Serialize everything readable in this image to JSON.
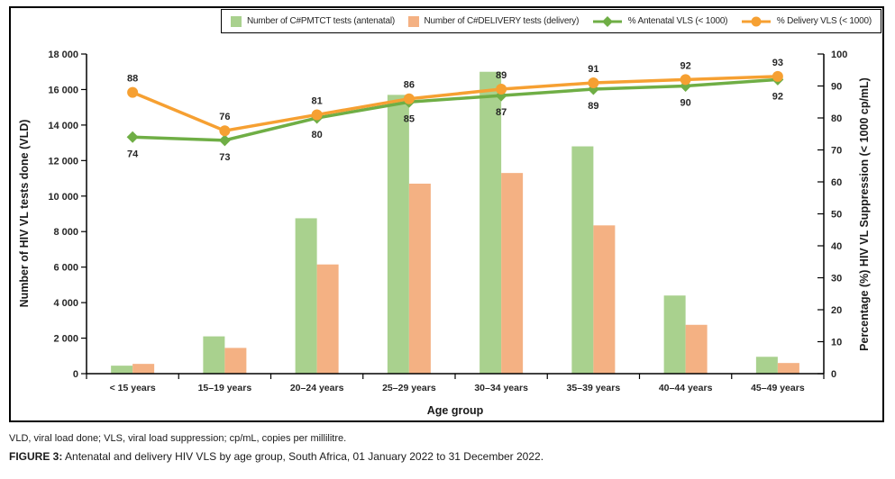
{
  "legend": {
    "items": [
      {
        "label": "Number of C#PMTCT tests (antenatal)",
        "swatch": "green-square"
      },
      {
        "label": "Number of C#DELIVERY tests (delivery)",
        "swatch": "orange-square"
      },
      {
        "label": "% Antenatal VLS (< 1000)",
        "swatch": "green-line-diamond"
      },
      {
        "label": "% Delivery VLS (< 1000)",
        "swatch": "orange-line-circle"
      }
    ]
  },
  "axes": {
    "left_title": "Number of HIV VL tests done (VLD)",
    "right_title": "Percentage (%) HIV VL Suppression (< 1000 cp/mL)",
    "x_title": "Age group"
  },
  "captions": {
    "note": "VLD, viral load done; VLS, viral load suppression; cp/mL, copies per millilitre.",
    "figure_label": "FIGURE 3:",
    "figure_text": " Antenatal and delivery HIV VLS by age group, South Africa, 01 January 2022 to 31 December 2022."
  },
  "chart_data": {
    "type": "combo-bar-line",
    "categories": [
      "< 15 years",
      "15–19 years",
      "20–24 years",
      "25–29 years",
      "30–34 years",
      "35–39 years",
      "40–44 years",
      "45–49 years"
    ],
    "bar_series": [
      {
        "name": "Number of C#PMTCT tests (antenatal)",
        "color": "#a9d18e",
        "values": [
          450,
          2100,
          8750,
          15700,
          17000,
          12800,
          4400,
          950
        ]
      },
      {
        "name": "Number of C#DELIVERY tests (delivery)",
        "color": "#f4b183",
        "values": [
          550,
          1450,
          6150,
          10700,
          11300,
          8350,
          2750,
          600
        ]
      }
    ],
    "line_series": [
      {
        "name": "% Antenatal VLS (< 1000)",
        "color": "#6fae45",
        "marker": "diamond",
        "label_position": "below",
        "values": [
          74,
          73,
          80,
          85,
          87,
          89,
          90,
          92
        ]
      },
      {
        "name": "% Delivery VLS (< 1000)",
        "color": "#f6a032",
        "marker": "circle",
        "label_position": "above",
        "values": [
          88,
          76,
          81,
          86,
          89,
          91,
          92,
          93
        ]
      }
    ],
    "left_axis": {
      "title": "Number of HIV VL tests done (VLD)",
      "range": [
        0,
        18000
      ],
      "tick_step": 2000,
      "tick_labels": [
        "0",
        "2 000",
        "4 000",
        "6 000",
        "8 000",
        "10 000",
        "12 000",
        "14 000",
        "16 000",
        "18 000"
      ]
    },
    "right_axis": {
      "title": "Percentage (%) HIV VL Suppression (< 1000 cp/mL)",
      "range": [
        0,
        100
      ],
      "tick_step": 10,
      "tick_labels": [
        "0",
        "10",
        "20",
        "30",
        "40",
        "50",
        "60",
        "70",
        "80",
        "90",
        "100"
      ]
    },
    "x_axis": {
      "title": "Age group"
    },
    "grid": false,
    "legend_position": "top"
  }
}
